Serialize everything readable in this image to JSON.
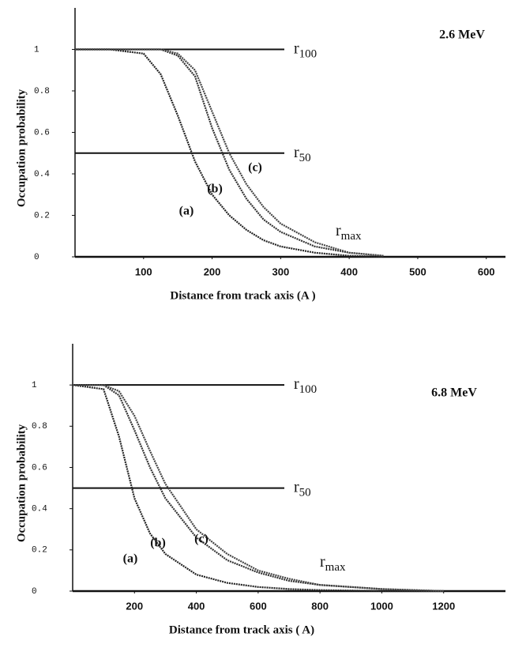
{
  "chart_data": [
    {
      "type": "line",
      "xlabel": "Distance from track axis  (A )",
      "ylabel": "Occupation probability",
      "annotation": "2.6 MeV",
      "reference_lines": [
        {
          "value": 1,
          "base": "r",
          "sub": "100"
        },
        {
          "value": 0.5,
          "base": "r",
          "sub": "50"
        }
      ],
      "rmax": {
        "base": "r",
        "sub": "max"
      },
      "x": [
        0,
        50,
        100,
        125,
        150,
        175,
        200,
        225,
        250,
        275,
        300,
        350,
        400,
        450
      ],
      "series": [
        {
          "name": "(a)",
          "color": "#222",
          "values": [
            1,
            1,
            0.98,
            0.88,
            0.68,
            0.46,
            0.3,
            0.2,
            0.13,
            0.08,
            0.05,
            0.02,
            0.005,
            0
          ]
        },
        {
          "name": "(b)",
          "color": "#333",
          "values": [
            1,
            1,
            1,
            1,
            0.97,
            0.87,
            0.62,
            0.42,
            0.28,
            0.18,
            0.12,
            0.05,
            0.02,
            0.005
          ]
        },
        {
          "name": "(c)",
          "color": "#444",
          "values": [
            1,
            1,
            1,
            1,
            0.98,
            0.9,
            0.7,
            0.5,
            0.35,
            0.24,
            0.16,
            0.07,
            0.02,
            0.005
          ]
        }
      ],
      "xlim": [
        0,
        628
      ],
      "xticks": [
        100,
        200,
        300,
        400,
        500,
        600
      ],
      "ylim": [
        0,
        1.2
      ],
      "yticks": [
        0,
        0.2,
        0.4,
        0.6,
        0.8,
        1
      ]
    },
    {
      "type": "line",
      "xlabel": "Distance from track axis  ( A)",
      "ylabel": "Occupation probability",
      "annotation": "6.8 MeV",
      "reference_lines": [
        {
          "value": 1,
          "base": "r",
          "sub": "100"
        },
        {
          "value": 0.5,
          "base": "r",
          "sub": "50"
        }
      ],
      "rmax": {
        "base": "r",
        "sub": "max"
      },
      "x": [
        0,
        100,
        150,
        200,
        250,
        300,
        400,
        500,
        600,
        700,
        800,
        1000,
        1200
      ],
      "series": [
        {
          "name": "(a)",
          "color": "#222",
          "values": [
            1,
            0.98,
            0.75,
            0.45,
            0.28,
            0.18,
            0.08,
            0.04,
            0.02,
            0.01,
            0.005,
            0,
            0
          ]
        },
        {
          "name": "(b)",
          "color": "#333",
          "values": [
            1,
            1,
            0.95,
            0.78,
            0.6,
            0.45,
            0.26,
            0.15,
            0.09,
            0.05,
            0.03,
            0.01,
            0
          ]
        },
        {
          "name": "(c)",
          "color": "#444",
          "values": [
            1,
            1,
            0.97,
            0.85,
            0.68,
            0.52,
            0.3,
            0.18,
            0.1,
            0.06,
            0.03,
            0.01,
            0
          ]
        }
      ],
      "xlim": [
        0,
        1400
      ],
      "xticks": [
        200,
        400,
        600,
        800,
        1000,
        1200
      ],
      "ylim": [
        0,
        1.2
      ],
      "yticks": [
        0,
        0.2,
        0.4,
        0.6,
        0.8,
        1
      ]
    }
  ]
}
